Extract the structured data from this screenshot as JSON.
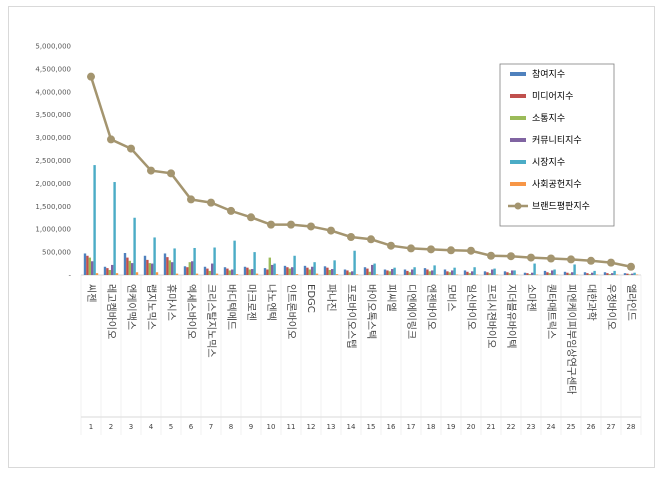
{
  "chart_data": {
    "type": "bar",
    "title": "",
    "xlabel": "",
    "ylabel": "",
    "ylim": [
      0,
      5000000
    ],
    "yticks": [
      "-",
      "500,000",
      "1,000,000",
      "1,500,000",
      "2,000,000",
      "2,500,000",
      "3,000,000",
      "3,500,000",
      "4,000,000",
      "4,500,000",
      "5,000,000"
    ],
    "categories": [
      "씨젠",
      "레고켐바이오",
      "엔케이맥스",
      "랩지노믹스",
      "휴마시스",
      "엑세스바이오",
      "크리스탈지노믹스",
      "바디텍메드",
      "마크로젠",
      "나노엔텍",
      "인트론바이오",
      "EDGC",
      "파나진",
      "프로바이오스텝",
      "바이오톡스텍",
      "피씨엘",
      "디엔에이링크",
      "엔젠바이오",
      "모비스",
      "일신바이오",
      "프리시젼바이오",
      "지더블유바이텍",
      "소마젠",
      "퀀타매트릭스",
      "피엔케이피부임상연구센타",
      "대한과학",
      "우정바이오",
      "엘라인드"
    ],
    "ranks": [
      "1",
      "2",
      "3",
      "4",
      "5",
      "6",
      "7",
      "8",
      "9",
      "10",
      "11",
      "12",
      "13",
      "14",
      "15",
      "16",
      "17",
      "18",
      "19",
      "20",
      "21",
      "22",
      "23",
      "24",
      "25",
      "26",
      "27",
      "28"
    ],
    "series": [
      {
        "name": "참여지수",
        "color": "#4f81bd",
        "values": [
          470000,
          180000,
          480000,
          420000,
          470000,
          190000,
          180000,
          170000,
          180000,
          150000,
          200000,
          200000,
          190000,
          120000,
          170000,
          120000,
          120000,
          150000,
          120000,
          100000,
          80000,
          80000,
          50000,
          90000,
          70000,
          60000,
          60000,
          40000
        ]
      },
      {
        "name": "미디어지수",
        "color": "#c0504d",
        "values": [
          420000,
          150000,
          380000,
          330000,
          390000,
          170000,
          140000,
          140000,
          160000,
          120000,
          170000,
          160000,
          160000,
          100000,
          140000,
          100000,
          90000,
          120000,
          80000,
          70000,
          60000,
          60000,
          40000,
          60000,
          50000,
          40000,
          40000,
          30000
        ]
      },
      {
        "name": "소통지수",
        "color": "#9bbb59",
        "values": [
          380000,
          110000,
          310000,
          260000,
          320000,
          280000,
          90000,
          100000,
          120000,
          380000,
          140000,
          120000,
          110000,
          60000,
          70000,
          80000,
          60000,
          80000,
          60000,
          40000,
          40000,
          40000,
          20000,
          40000,
          30000,
          20000,
          20000,
          15000
        ]
      },
      {
        "name": "커뮤니티지수",
        "color": "#8064a2",
        "values": [
          300000,
          220000,
          260000,
          250000,
          280000,
          300000,
          250000,
          120000,
          130000,
          220000,
          170000,
          180000,
          130000,
          80000,
          220000,
          130000,
          120000,
          100000,
          100000,
          80000,
          120000,
          100000,
          50000,
          100000,
          60000,
          50000,
          40000,
          30000
        ]
      },
      {
        "name": "시장지수",
        "color": "#4bacc6",
        "values": [
          2400000,
          2030000,
          1250000,
          820000,
          580000,
          590000,
          600000,
          750000,
          500000,
          250000,
          420000,
          280000,
          320000,
          530000,
          250000,
          160000,
          170000,
          210000,
          160000,
          170000,
          140000,
          100000,
          250000,
          120000,
          230000,
          90000,
          90000,
          50000
        ]
      },
      {
        "name": "사회공헌지수",
        "color": "#f79646",
        "values": [
          40000,
          40000,
          60000,
          60000,
          30000,
          30000,
          30000,
          20000,
          30000,
          20000,
          20000,
          30000,
          20000,
          15000,
          15000,
          10000,
          10000,
          10000,
          10000,
          10000,
          10000,
          10000,
          10000,
          10000,
          10000,
          10000,
          10000,
          10000
        ]
      }
    ],
    "line": {
      "name": "브랜드평판지수",
      "color": "#a4956f",
      "values": [
        4330000,
        2960000,
        2760000,
        2280000,
        2220000,
        1650000,
        1580000,
        1400000,
        1260000,
        1100000,
        1100000,
        1060000,
        970000,
        830000,
        780000,
        640000,
        580000,
        560000,
        540000,
        530000,
        420000,
        410000,
        380000,
        360000,
        340000,
        310000,
        270000,
        180000
      ]
    },
    "legend_position": "top-right"
  }
}
